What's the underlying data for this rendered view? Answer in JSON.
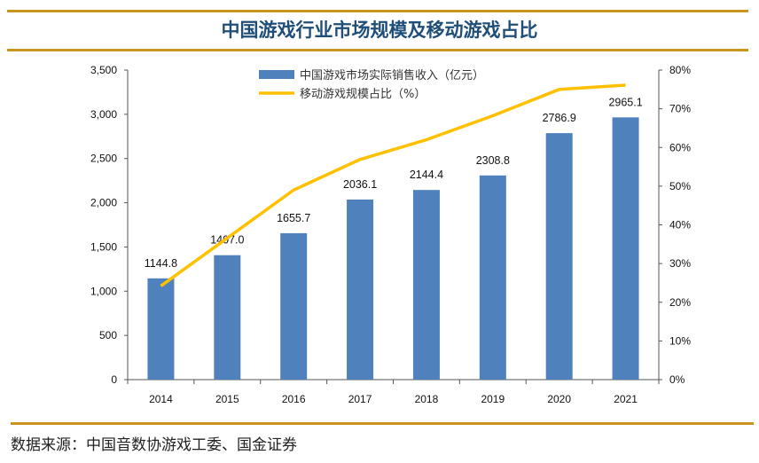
{
  "title": "中国游戏行业市场规模及移动游戏占比",
  "source": "数据来源：中国音数协游戏工委、国金证券",
  "colors": {
    "bar": "#4f81bd",
    "line": "#ffc000",
    "rule": "#c8961e",
    "title": "#1f4e79"
  },
  "chart_data": {
    "type": "bar+line",
    "categories": [
      "2014",
      "2015",
      "2016",
      "2017",
      "2018",
      "2019",
      "2020",
      "2021"
    ],
    "series": [
      {
        "name": "中国游戏市场实际销售收入（亿元）",
        "type": "bar",
        "axis": "left",
        "values": [
          1144.8,
          1407.0,
          1655.7,
          2036.1,
          2144.4,
          2308.8,
          2786.9,
          2965.1
        ],
        "labels": [
          "1144.8",
          "1407.0",
          "1655.7",
          "2036.1",
          "2144.4",
          "2308.8",
          "2786.9",
          "2965.1"
        ]
      },
      {
        "name": "移动游戏规模占比（%）",
        "type": "line",
        "axis": "right",
        "values": [
          24.2,
          36.6,
          49.0,
          56.9,
          62.0,
          68.2,
          75.0,
          76.1
        ]
      }
    ],
    "left_axis": {
      "ylim": [
        0,
        3500
      ],
      "ticks": [
        "0",
        "500",
        "1,000",
        "1,500",
        "2,000",
        "2,500",
        "3,000",
        "3,500"
      ]
    },
    "right_axis": {
      "ylim": [
        0,
        80
      ],
      "ticks": [
        "0%",
        "10%",
        "20%",
        "30%",
        "40%",
        "50%",
        "60%",
        "70%",
        "80%"
      ]
    },
    "legend": "top-center",
    "grid": false
  }
}
